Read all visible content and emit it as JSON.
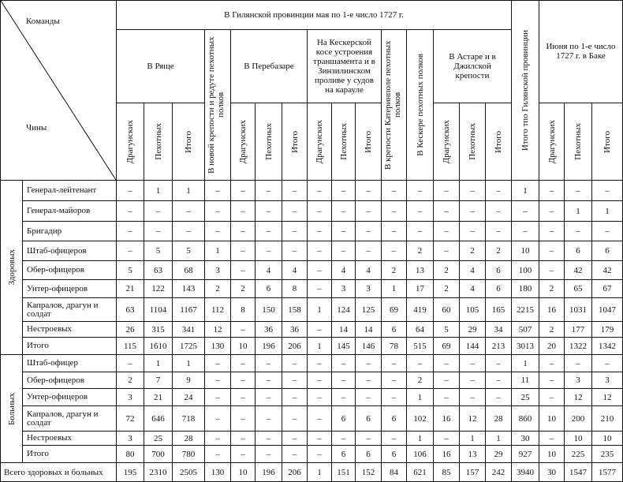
{
  "header": {
    "corner_top": "Команды",
    "corner_bottom": "Чины",
    "gilan_title": "В Гилянской провинции мая по 1-е число 1727 г.",
    "ryashch": "В Ряще",
    "new_fortress": "В новой крепости и редуте пехотных полков",
    "perebazar": "В Перебазаре",
    "kesker_spit": "На Кескерской косе устроения траншамента и в Зинзилинском проливе у судов на карауле",
    "katerinopol": "В крепости Катеринполе пехотных полков",
    "keskere": "В Кескере пехотных полков",
    "astara": "В Астаре и в Джилской крепости",
    "gilan_total": "Итого тпо Гилянской провинции",
    "baku": "Июня по 1-е число 1727 г. в Баке",
    "dragoons": "Драгунских",
    "infantry": "Пехотных",
    "total": "Итого"
  },
  "groups": {
    "healthy": "Здоровых",
    "sick": "Больных"
  },
  "healthy_rows": [
    {
      "label": "Генерал-лейтенант",
      "values": [
        "–",
        "1",
        "1",
        "–",
        "–",
        "–",
        "–",
        "–",
        "–",
        "–",
        "–",
        "–",
        "–",
        "–",
        "–",
        "1",
        "–",
        "–",
        "–"
      ]
    },
    {
      "label": "Генерал-майоров",
      "values": [
        "–",
        "–",
        "–",
        "–",
        "–",
        "–",
        "–",
        "–",
        "–",
        "–",
        "–",
        "–",
        "–",
        "–",
        "–",
        "–",
        "–",
        "1",
        "1"
      ]
    },
    {
      "label": "Бригадир",
      "values": [
        "–",
        "–",
        "–",
        "–",
        "–",
        "–",
        "–",
        "–",
        "–",
        "–",
        "–",
        "–",
        "–",
        "–",
        "–",
        "–",
        "–",
        "–",
        "–"
      ]
    },
    {
      "label": "Штаб-офицеров",
      "values": [
        "–",
        "5",
        "5",
        "1",
        "–",
        "–",
        "–",
        "–",
        "–",
        "–",
        "–",
        "2",
        "–",
        "2",
        "2",
        "10",
        "–",
        "6",
        "6"
      ]
    },
    {
      "label": "Обер-офицеров",
      "values": [
        "5",
        "63",
        "68",
        "3",
        "–",
        "4",
        "4",
        "–",
        "4",
        "4",
        "2",
        "13",
        "2",
        "4",
        "6",
        "100",
        "–",
        "42",
        "42"
      ]
    },
    {
      "label": "Унтер-офицеров",
      "values": [
        "21",
        "122",
        "143",
        "2",
        "2",
        "6",
        "8",
        "–",
        "3",
        "3",
        "1",
        "17",
        "2",
        "4",
        "6",
        "180",
        "2",
        "65",
        "67"
      ]
    },
    {
      "label": "Капралов, драгун и солдат",
      "values": [
        "63",
        "1104",
        "1167",
        "112",
        "8",
        "150",
        "158",
        "1",
        "124",
        "125",
        "69",
        "419",
        "60",
        "105",
        "165",
        "2215",
        "16",
        "1031",
        "1047"
      ]
    },
    {
      "label": "Нестроевых",
      "values": [
        "26",
        "315",
        "341",
        "12",
        "–",
        "36",
        "36",
        "–",
        "14",
        "14",
        "6",
        "64",
        "5",
        "29",
        "34",
        "507",
        "2",
        "177",
        "179"
      ]
    },
    {
      "label": "Итого",
      "values": [
        "115",
        "1610",
        "1725",
        "130",
        "10",
        "196",
        "206",
        "1",
        "145",
        "146",
        "78",
        "515",
        "69",
        "144",
        "213",
        "3013",
        "20",
        "1322",
        "1342"
      ]
    }
  ],
  "sick_rows": [
    {
      "label": "Штаб-офицер",
      "values": [
        "–",
        "1",
        "1",
        "–",
        "–",
        "–",
        "–",
        "–",
        "–",
        "–",
        "–",
        "–",
        "–",
        "–",
        "–",
        "1",
        "–",
        "–",
        "–"
      ]
    },
    {
      "label": "Обер-офицеров",
      "values": [
        "2",
        "7",
        "9",
        "–",
        "–",
        "–",
        "–",
        "–",
        "–",
        "–",
        "–",
        "2",
        "–",
        "–",
        "–",
        "11",
        "–",
        "3",
        "3"
      ]
    },
    {
      "label": "Унтер-офицеров",
      "values": [
        "3",
        "21",
        "24",
        "–",
        "–",
        "–",
        "–",
        "–",
        "–",
        "–",
        "–",
        "1",
        "–",
        "–",
        "–",
        "25",
        "–",
        "12",
        "12"
      ]
    },
    {
      "label": "Капралов, драгун и солдат",
      "values": [
        "72",
        "646",
        "718",
        "–",
        "–",
        "–",
        "–",
        "–",
        "6",
        "6",
        "6",
        "102",
        "16",
        "12",
        "28",
        "860",
        "10",
        "200",
        "210"
      ]
    },
    {
      "label": "Нестроевых",
      "values": [
        "3",
        "25",
        "28",
        "–",
        "–",
        "–",
        "–",
        "–",
        "–",
        "–",
        "–",
        "1",
        "–",
        "1",
        "1",
        "30",
        "–",
        "10",
        "10"
      ]
    },
    {
      "label": "Итого",
      "values": [
        "80",
        "700",
        "780",
        "–",
        "–",
        "–",
        "–",
        "–",
        "6",
        "6",
        "6",
        "106",
        "16",
        "13",
        "29",
        "927",
        "10",
        "225",
        "235"
      ]
    }
  ],
  "grand_total": {
    "label": "Всего здоровых и больных",
    "values": [
      "195",
      "2310",
      "2505",
      "130",
      "10",
      "196",
      "206",
      "1",
      "151",
      "152",
      "84",
      "621",
      "85",
      "157",
      "242",
      "3940",
      "30",
      "1547",
      "1577"
    ]
  }
}
